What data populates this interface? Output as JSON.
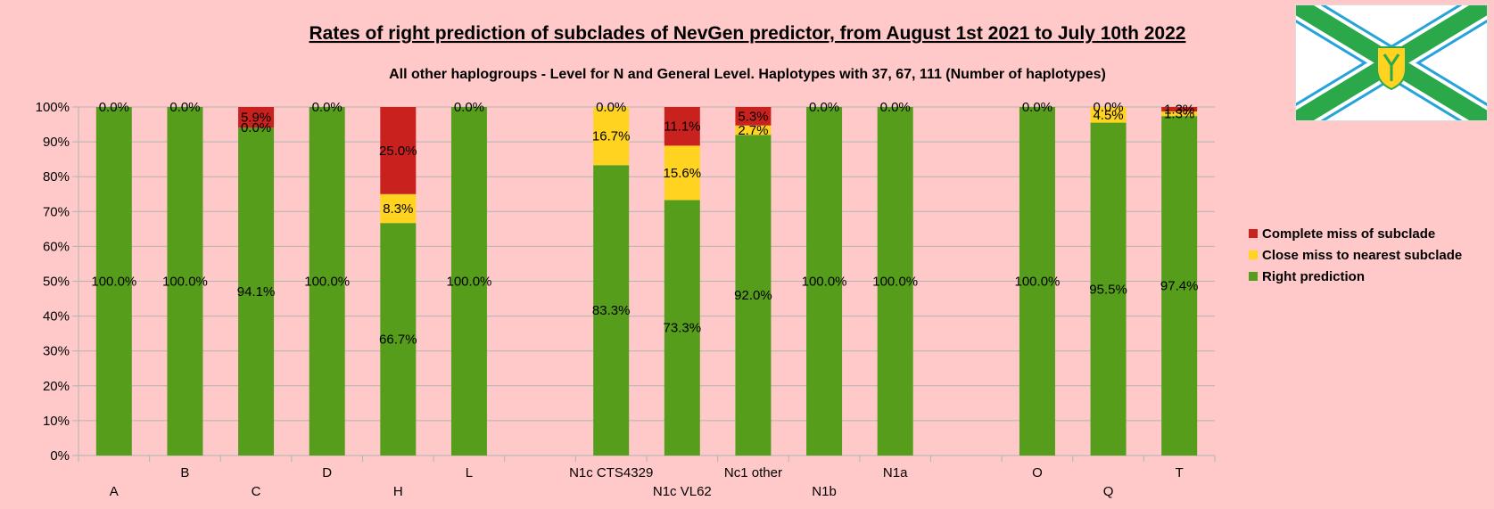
{
  "chart_data": {
    "type": "bar",
    "stacked": true,
    "title": "Rates of right prediction of subclades of NevGen predictor, from August 1st 2021 to July 10th 2022",
    "subtitle": "All other haplogroups - Level for N and General Level. Haplotypes with 37, 67, 111 (Number of haplotypes)",
    "categories": [
      "A",
      "B",
      "C",
      "D",
      "H",
      "L",
      "",
      "N1c CTS4329",
      "N1c VL62",
      "Nc1 other",
      "N1b",
      "N1a",
      "",
      "O",
      "Q",
      "T"
    ],
    "ylim": [
      0,
      100
    ],
    "yticks": [
      "0%",
      "10%",
      "20%",
      "30%",
      "40%",
      "50%",
      "60%",
      "70%",
      "80%",
      "90%",
      "100%"
    ],
    "grid": true,
    "legend_position": "right",
    "series": [
      {
        "name": "Right prediction",
        "color": "#579d1c",
        "values": [
          100.0,
          100.0,
          94.1,
          100.0,
          66.7,
          100.0,
          null,
          83.3,
          73.3,
          92.0,
          100.0,
          100.0,
          null,
          100.0,
          95.5,
          97.4
        ],
        "labels": [
          "100.0%",
          "100.0%",
          "94.1%",
          "100.0%",
          "66.7%",
          "100.0%",
          "",
          "83.3%",
          "73.3%",
          "92.0%",
          "100.0%",
          "100.0%",
          "",
          "100.0%",
          "95.5%",
          "97.4%"
        ]
      },
      {
        "name": "Close miss to nearest subclade",
        "color": "#ffd320",
        "values": [
          null,
          null,
          0.0,
          null,
          8.3,
          null,
          null,
          16.7,
          15.6,
          2.7,
          null,
          null,
          null,
          null,
          4.5,
          1.3
        ],
        "labels": [
          "",
          "",
          "0.0%",
          "",
          "8.3%",
          "",
          "",
          "16.7%",
          "15.6%",
          "2.7%",
          "",
          "",
          "",
          "",
          "4.5%",
          "1.3%"
        ]
      },
      {
        "name": "Complete miss of subclade",
        "color": "#c9211e",
        "values": [
          0.0,
          0.0,
          5.9,
          0.0,
          25.0,
          0.0,
          null,
          0.0,
          11.1,
          5.3,
          0.0,
          0.0,
          null,
          0.0,
          0.0,
          1.3
        ],
        "labels": [
          "0.0%",
          "0.0%",
          "5.9%",
          "0.0%",
          "25.0%",
          "0.0%",
          "",
          "0.0%",
          "11.1%",
          "5.3%",
          "0.0%",
          "0.0%",
          "",
          "0.0%",
          "0.0%",
          "1.3%"
        ]
      }
    ]
  },
  "colors": {
    "background": "#ffc9c9",
    "grid": "#b3b3b3"
  },
  "flag": {
    "icon": "flag-icon",
    "colors": {
      "stripe": "#2aa84a",
      "edge": "#27a3dc",
      "field": "#ffffff",
      "shield": "#ffd320"
    }
  }
}
